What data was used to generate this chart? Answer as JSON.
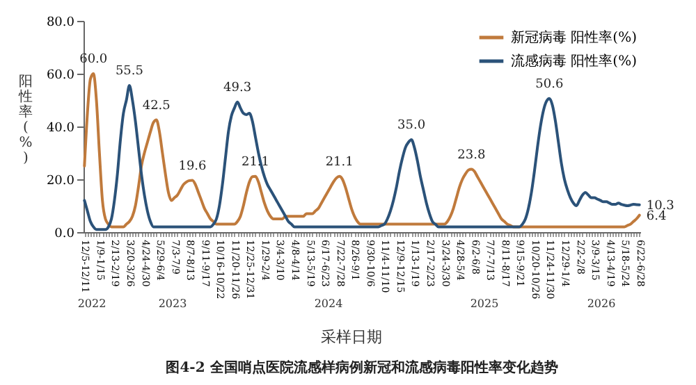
{
  "chart_data": {
    "type": "line",
    "title": "图4-2 全国哨点医院流感样病例新冠和流感病毒阳性率变化趋势",
    "xlabel": "采样日期",
    "ylabel": "阳性率(%)",
    "categories": [
      "12/5-12/11",
      null,
      null,
      null,
      null,
      "1/9-1/15",
      null,
      null,
      null,
      null,
      "2/13-2/19",
      null,
      null,
      null,
      null,
      "3/20-3/26",
      null,
      null,
      null,
      null,
      "4/24-4/30",
      null,
      null,
      null,
      null,
      "5/29-6/4",
      null,
      null,
      null,
      null,
      "7/3-7/9",
      null,
      null,
      null,
      null,
      "8/7-8/13",
      null,
      null,
      null,
      null,
      "9/11-9/17",
      null,
      null,
      null,
      null,
      "10/16-10/22",
      null,
      null,
      null,
      null,
      "11/20-11/26",
      null,
      null,
      null,
      null,
      "12/25-12/31",
      null,
      null,
      null,
      null,
      "1/29-2/4",
      null,
      null,
      null,
      null,
      "3/4-3/10",
      null,
      null,
      null,
      null,
      "4/8-4/14",
      null,
      null,
      null,
      null,
      "5/13-5/19",
      null,
      null,
      null,
      null,
      "6/17-6/23",
      null,
      null,
      null,
      null,
      "7/22-7/28",
      null,
      null,
      null,
      null,
      "8/26-9/1",
      null,
      null,
      null,
      null,
      "9/30-10/6",
      null,
      null,
      null,
      null,
      "11/4-11/10",
      null,
      null,
      null,
      null,
      "12/9-12/15",
      null,
      null,
      null,
      null,
      "1/13-1/19",
      null,
      null,
      null,
      null,
      "2/17-2/23",
      null,
      null,
      null,
      null,
      "3/24-3/30",
      null,
      null,
      null,
      null,
      "4/28-5/4",
      null,
      null,
      null,
      null,
      "6/2-6/8",
      null,
      null,
      null,
      null,
      "7/7-7/13",
      null,
      null,
      null,
      null,
      "8/11-8/17",
      null,
      null,
      null,
      null,
      "9/15-9/21",
      null,
      null,
      null,
      null,
      "10/20-10/26",
      null,
      null,
      null,
      null,
      "11/24-11/30",
      null,
      null,
      null,
      null,
      "12/29-1/4",
      null,
      null,
      null,
      null,
      "2/2-2/8",
      null,
      null,
      null,
      null,
      "3/9-3/15",
      null,
      null,
      null,
      null,
      "4/13-4/19",
      null,
      null,
      null,
      null,
      "5/18-5/24",
      null,
      null,
      null,
      null,
      "6/22-6/28"
    ],
    "series": [
      {
        "name": "新冠病毒 阳性率(%)",
        "color": "#c07a3c",
        "values": [
          25,
          45,
          58,
          60.0,
          50,
          30,
          12,
          5,
          3,
          2,
          2,
          2,
          2,
          2,
          3,
          4,
          6,
          10,
          17,
          25,
          30,
          34,
          38,
          41.5,
          42.5,
          38,
          30,
          22,
          15,
          12,
          13,
          14,
          16,
          18,
          19,
          19.5,
          19.6,
          18,
          15,
          12,
          9,
          7,
          5,
          4,
          3,
          3,
          3,
          3,
          3,
          3,
          3,
          4,
          6,
          10,
          15,
          19,
          21,
          21.1,
          19,
          15,
          11,
          8,
          6,
          5,
          5,
          5,
          5,
          6,
          6,
          6,
          6,
          6,
          6,
          6,
          7,
          7,
          7,
          8,
          9,
          11,
          13,
          15,
          17,
          19,
          20.5,
          21.1,
          20,
          17,
          13,
          9,
          6,
          4,
          3,
          3,
          3,
          3,
          3,
          3,
          3,
          3,
          3,
          3,
          3,
          3,
          3,
          3,
          3,
          3,
          3,
          3,
          3,
          3,
          3,
          3,
          3,
          3,
          3,
          3,
          3,
          3,
          3,
          4,
          6,
          9,
          13,
          17,
          20,
          22,
          23.5,
          23.8,
          23,
          21,
          19,
          17,
          15,
          13,
          11,
          9,
          7,
          5,
          4,
          3,
          2.5,
          2,
          2,
          2,
          2,
          2,
          2,
          2,
          2,
          2,
          2,
          2,
          2,
          2,
          2,
          2,
          2,
          2,
          2,
          2,
          2,
          2,
          2,
          2,
          2,
          2,
          2,
          2,
          2,
          2,
          2,
          2,
          2,
          2,
          2,
          2,
          2,
          2,
          2,
          2.5,
          3,
          4,
          5,
          6.4
        ],
        "value_labels": [
          null,
          null,
          null,
          "60.0",
          null,
          null,
          null,
          null,
          null,
          null,
          null,
          null,
          null,
          null,
          null,
          null,
          null,
          null,
          null,
          null,
          null,
          null,
          null,
          null,
          "42.5",
          null,
          null,
          null,
          null,
          null,
          null,
          null,
          null,
          null,
          null,
          null,
          "19.6",
          null,
          null,
          null,
          null,
          null,
          null,
          null,
          null,
          null,
          null,
          null,
          null,
          null,
          null,
          null,
          null,
          null,
          null,
          null,
          null,
          "21.1",
          null,
          null,
          null,
          null,
          null,
          null,
          null,
          null,
          null,
          null,
          null,
          null,
          null,
          null,
          null,
          null,
          null,
          null,
          null,
          null,
          null,
          null,
          null,
          null,
          null,
          null,
          null,
          "21.1",
          null,
          null,
          null,
          null,
          null,
          null,
          null,
          null,
          null,
          null,
          null,
          null,
          null,
          null,
          null,
          null,
          null,
          null,
          null,
          null,
          null,
          null,
          null,
          null,
          null,
          null,
          null,
          null,
          null,
          null,
          null,
          null,
          null,
          null,
          null,
          null,
          null,
          null,
          null,
          null,
          null,
          null,
          null,
          "23.8",
          null,
          null,
          null,
          null,
          null,
          null,
          null,
          null,
          null,
          null,
          null,
          null,
          null,
          null,
          null,
          null,
          null,
          null,
          null,
          null,
          null,
          null,
          null,
          null,
          null,
          null,
          null,
          null,
          null,
          null,
          null,
          null,
          null,
          null,
          null,
          null,
          null,
          null,
          null,
          null,
          null,
          null,
          null,
          null,
          null,
          null,
          null,
          null,
          null,
          null,
          null,
          null,
          null,
          null,
          null,
          "6.4"
        ]
      },
      {
        "name": "流感病毒 阳性率(%)",
        "color": "#2b5279",
        "values": [
          12,
          8,
          4,
          2,
          1,
          1,
          1,
          1,
          2,
          5,
          12,
          22,
          35,
          45,
          50,
          55.5,
          50,
          42,
          32,
          22,
          14,
          8,
          4,
          2,
          2,
          2,
          2,
          2,
          2,
          2,
          2,
          2,
          2,
          2,
          2,
          2,
          2,
          2,
          2,
          2,
          2,
          2,
          2,
          3,
          5,
          10,
          18,
          28,
          38,
          44,
          47,
          49.3,
          47,
          45,
          44.5,
          45,
          42,
          36,
          30,
          25,
          21,
          18,
          16,
          14,
          12,
          10,
          8,
          6,
          4,
          3,
          2,
          2,
          2,
          2,
          2,
          2,
          2,
          2,
          2,
          2,
          2,
          2,
          2,
          2,
          2,
          2,
          2,
          2,
          2,
          2,
          2,
          2,
          2,
          2,
          2,
          2,
          2,
          2,
          2,
          2.5,
          3,
          5,
          8,
          12,
          17,
          23,
          28,
          32,
          34,
          35.0,
          32,
          27,
          21,
          16,
          11,
          7,
          4,
          3,
          2,
          2,
          2,
          2,
          2,
          2,
          2,
          2,
          2,
          2,
          2,
          2,
          2,
          2,
          2,
          2,
          2,
          2,
          2,
          2,
          2,
          2,
          2,
          2,
          2,
          2,
          2,
          2,
          3,
          5,
          9,
          15,
          23,
          32,
          40,
          46,
          49.5,
          50.6,
          48,
          42,
          34,
          26,
          20,
          16,
          13,
          11,
          10,
          12,
          14,
          15,
          14,
          13,
          13,
          12.5,
          12,
          11.5,
          11.5,
          11,
          10.5,
          10.5,
          11,
          10.5,
          10.2,
          10,
          10.2,
          10.5,
          10.4,
          10.3
        ],
        "value_labels": [
          null,
          null,
          null,
          null,
          null,
          null,
          null,
          null,
          null,
          null,
          null,
          null,
          null,
          null,
          null,
          "55.5",
          null,
          null,
          null,
          null,
          null,
          null,
          null,
          null,
          null,
          null,
          null,
          null,
          null,
          null,
          null,
          null,
          null,
          null,
          null,
          null,
          null,
          null,
          null,
          null,
          null,
          null,
          null,
          null,
          null,
          null,
          null,
          null,
          null,
          null,
          null,
          "49.3",
          null,
          null,
          null,
          null,
          null,
          null,
          null,
          null,
          null,
          null,
          null,
          null,
          null,
          null,
          null,
          null,
          null,
          null,
          null,
          null,
          null,
          null,
          null,
          null,
          null,
          null,
          null,
          null,
          null,
          null,
          null,
          null,
          null,
          null,
          null,
          null,
          null,
          null,
          null,
          null,
          null,
          null,
          null,
          null,
          null,
          null,
          null,
          null,
          null,
          null,
          null,
          null,
          null,
          null,
          null,
          null,
          null,
          "35.0",
          null,
          null,
          null,
          null,
          null,
          null,
          null,
          null,
          null,
          null,
          null,
          null,
          null,
          null,
          null,
          null,
          null,
          null,
          null,
          null,
          null,
          null,
          null,
          null,
          null,
          null,
          null,
          null,
          null,
          null,
          null,
          null,
          null,
          null,
          null,
          null,
          null,
          null,
          null,
          null,
          null,
          null,
          null,
          null,
          null,
          "50.6",
          null,
          null,
          null,
          null,
          null,
          null,
          null,
          null,
          null,
          null,
          null,
          null,
          null,
          null,
          null,
          null,
          null,
          null,
          null,
          null,
          null,
          null,
          null,
          null,
          null,
          null,
          null,
          null,
          null,
          "10.3"
        ]
      }
    ],
    "ylim": [
      0,
      80
    ],
    "yticks": [
      {
        "value": 0,
        "label": "0.0"
      },
      {
        "value": 20,
        "label": "20.0"
      },
      {
        "value": 40,
        "label": "40.0"
      },
      {
        "value": 60,
        "label": "60.0"
      },
      {
        "value": 80,
        "label": "80.0"
      }
    ],
    "legend": "top right",
    "annotations": [
      "2022",
      "2023",
      "2024",
      "2025",
      "2026"
    ]
  }
}
